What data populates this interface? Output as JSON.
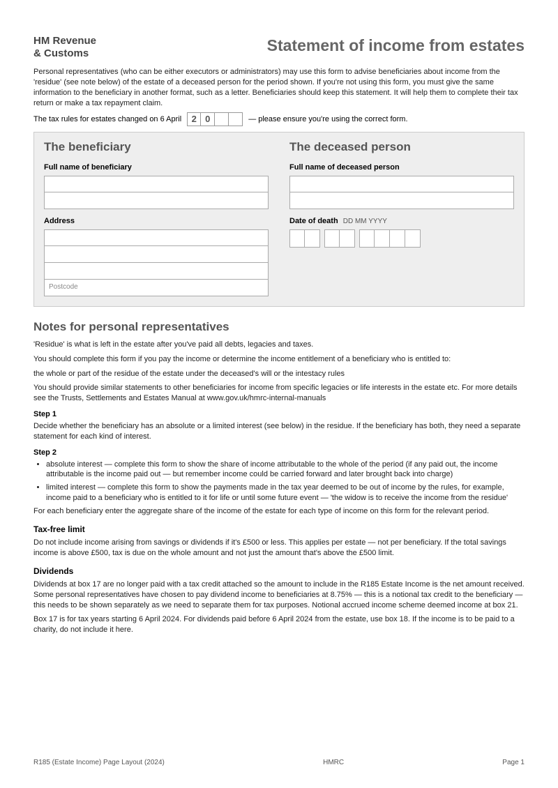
{
  "header": {
    "logo_line1": "HM Revenue",
    "logo_line2": "& Customs",
    "title": "Statement of income from estates"
  },
  "intro": {
    "para1": "Personal representatives (who can be either executors or administrators) may use this form to advise beneficiaries about income from the 'residue' (see note below) of the estate of a deceased person for the period shown. If you're not using this form, you must give the same information to the beneficiary in another format, such as a letter. Beneficiaries should keep this statement. It will help them to complete their tax return or make a tax repayment claim.",
    "year_prefix": "The tax rules for estates changed on 6 April",
    "year_digits": [
      "2",
      "0",
      "",
      ""
    ],
    "year_suffix": " — please ensure you're using the correct form."
  },
  "beneficiary_panel": {
    "heading": "The beneficiary",
    "name_label": "Full name of beneficiary",
    "address_label": "Address",
    "postcode_placeholder": "Postcode"
  },
  "deceased_panel": {
    "heading": "The deceased person",
    "name_label": "Full name of deceased person",
    "date_label": "Date of death",
    "date_format": "DD MM YYYY"
  },
  "notes": {
    "heading": "Notes for personal representatives",
    "p1": "'Residue' is what is left in the estate after you've paid all debts, legacies and taxes.",
    "p2": "You should complete this form if you pay the income or determine the income entitlement of a beneficiary who is entitled to:",
    "p3": "the whole or part of the residue of the estate under the deceased's will or the intestacy rules",
    "p4": "You should provide similar statements to other beneficiaries for income from specific legacies or life interests in the estate etc. For more details see the Trusts, Settlements and Estates Manual at www.gov.uk/hmrc-internal-manuals",
    "step1_label": "Step 1",
    "step1_text": "Decide whether the beneficiary has an absolute or a limited interest (see below) in the residue. If the beneficiary has both, they need a separate statement for each kind of interest.",
    "step2_label": "Step 2",
    "step2_bullets": [
      "absolute interest — complete this form to show the share of income attributable to the whole of the period (if any paid out, the income attributable is the income paid out — but remember income could be carried forward and later brought back into charge)",
      "limited interest — complete this form to show the payments made in the tax year deemed to be out of income by the rules, for example, income paid to a beneficiary who is entitled to it for life or until some future event — 'the widow is to receive the income from the residue'"
    ],
    "step2_p": "For each beneficiary enter the aggregate share of the income of the estate for each type of income on this form for the relevant period.",
    "tax_free_heading": "Tax-free limit",
    "tax_free_text": "Do not include income arising from savings or dividends if it's £500 or less. This applies per estate — not per beneficiary. If the total savings income is above £500, tax is due on the whole amount and not just the amount that's above the £500 limit.",
    "dividends_heading": "Dividends",
    "dividends_p1": "Dividends at box 17 are no longer paid with a tax credit attached so the amount to include in the R185 Estate Income is the net amount received. Some personal representatives have chosen to pay dividend income to beneficiaries at 8.75% — this is a notional tax credit to the beneficiary — this needs to be shown separately as we need to separate them for tax purposes. Notional accrued income scheme deemed income at box 21.",
    "dividends_p2": "Box 17 is for tax years starting 6 April 2024. For dividends paid before 6 April 2024 from the estate, use box 18. If the income is to be paid to a charity, do not include it here."
  },
  "footer": {
    "left": "R185 (Estate Income) Page Layout (2024)",
    "center": "HMRC",
    "right": "Page 1"
  }
}
